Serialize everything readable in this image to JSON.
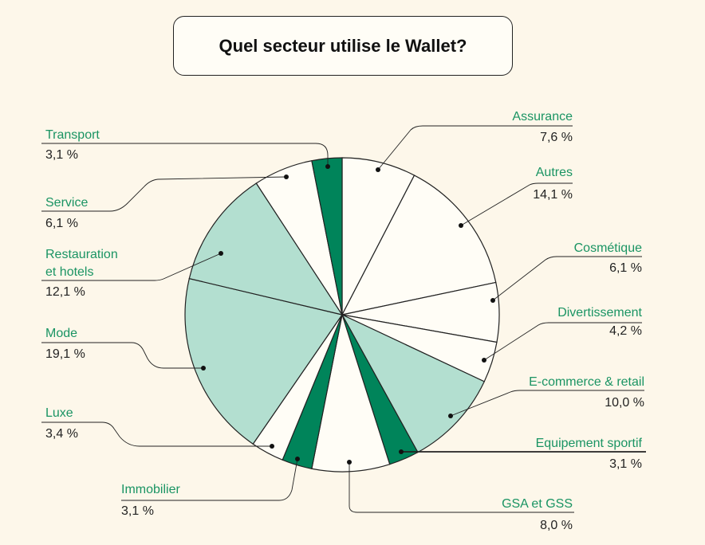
{
  "chart_data": {
    "type": "pie",
    "title": "Quel secteur utilise le Wallet?",
    "unit": "%",
    "start": "top",
    "direction": "clockwise",
    "slices": [
      {
        "label": "Assurance",
        "value": 7.6,
        "display": "7,6 %",
        "color": "#fffdf6"
      },
      {
        "label": "Autres",
        "value": 14.1,
        "display": "14,1 %",
        "color": "#fffdf6"
      },
      {
        "label": "Cosmétique",
        "value": 6.1,
        "display": "6,1 %",
        "color": "#fffdf6"
      },
      {
        "label": "Divertissement",
        "value": 4.2,
        "display": "4,2 %",
        "color": "#fffdf6"
      },
      {
        "label": "E-commerce & retail",
        "value": 10.0,
        "display": "10,0 %",
        "color": "#b3dfd0"
      },
      {
        "label": "Equipement sportif",
        "value": 3.1,
        "display": "3,1 %",
        "color": "#00845a"
      },
      {
        "label": "GSA et GSS",
        "value": 8.0,
        "display": "8,0 %",
        "color": "#fffdf6"
      },
      {
        "label": "Immobilier",
        "value": 3.1,
        "display": "3,1 %",
        "color": "#00845a"
      },
      {
        "label": "Luxe",
        "value": 3.4,
        "display": "3,4 %",
        "color": "#fffdf6"
      },
      {
        "label": "Mode",
        "value": 19.1,
        "display": "19,1 %",
        "color": "#b3dfd0"
      },
      {
        "label": "Restauration\net hotels",
        "value": 12.1,
        "display": "12,1 %",
        "color": "#b3dfd0"
      },
      {
        "label": "Service",
        "value": 6.1,
        "display": "6,1 %",
        "color": "#fffdf6"
      },
      {
        "label": "Transport",
        "value": 3.1,
        "display": "3,1 %",
        "color": "#00845a"
      }
    ]
  },
  "colors": {
    "background": "#fdf7ea",
    "label_text": "#1a9463",
    "outline": "#222222"
  }
}
